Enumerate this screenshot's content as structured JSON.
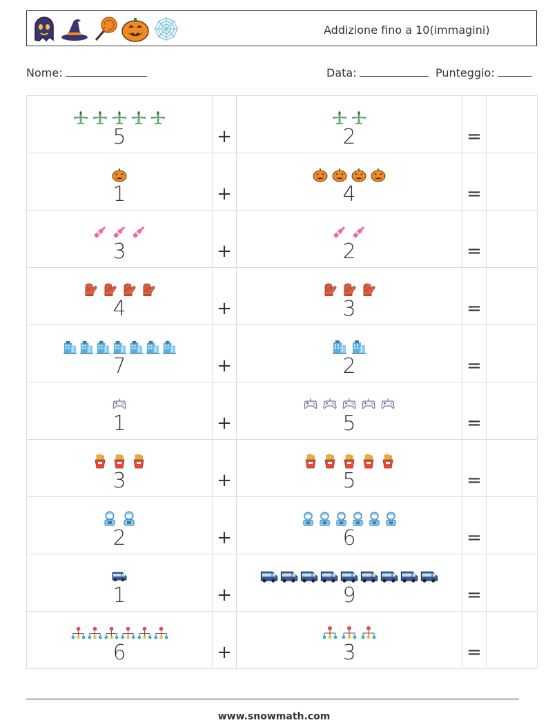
{
  "header": {
    "title": "Addizione fino a 10(immagini)",
    "icons": [
      "ghost-icon",
      "witch-hat-icon",
      "lollipop-icon",
      "jack-o-lantern-icon",
      "spider-web-icon"
    ]
  },
  "info": {
    "name_label": "Nome:",
    "date_label": "Data:",
    "score_label": "Punteggio:"
  },
  "operators": {
    "plus": "+",
    "equals": "="
  },
  "rows": [
    {
      "a": 5,
      "b": 2,
      "icon": "airplane-icon",
      "color": "#6aa874"
    },
    {
      "a": 1,
      "b": 4,
      "icon": "pumpkin-icon",
      "color": "#f08a24"
    },
    {
      "a": 3,
      "b": 2,
      "icon": "bottle-icon",
      "color": "#e86aa6"
    },
    {
      "a": 4,
      "b": 3,
      "icon": "oven-mitt-icon",
      "color": "#e4684a"
    },
    {
      "a": 7,
      "b": 2,
      "icon": "building-icon",
      "color": "#5aaee0"
    },
    {
      "a": 1,
      "b": 5,
      "icon": "game-controller-icon",
      "color": "#c7a8e0"
    },
    {
      "a": 3,
      "b": 5,
      "icon": "french-fries-icon",
      "color": "#e84a3a"
    },
    {
      "a": 2,
      "b": 6,
      "icon": "astronaut-icon",
      "color": "#8ccdf0"
    },
    {
      "a": 1,
      "b": 9,
      "icon": "van-icon",
      "color": "#3a5a9a"
    },
    {
      "a": 6,
      "b": 3,
      "icon": "network-icon",
      "color": "#e84a5a"
    }
  ],
  "footer": {
    "website": "www.snowmath.com"
  }
}
